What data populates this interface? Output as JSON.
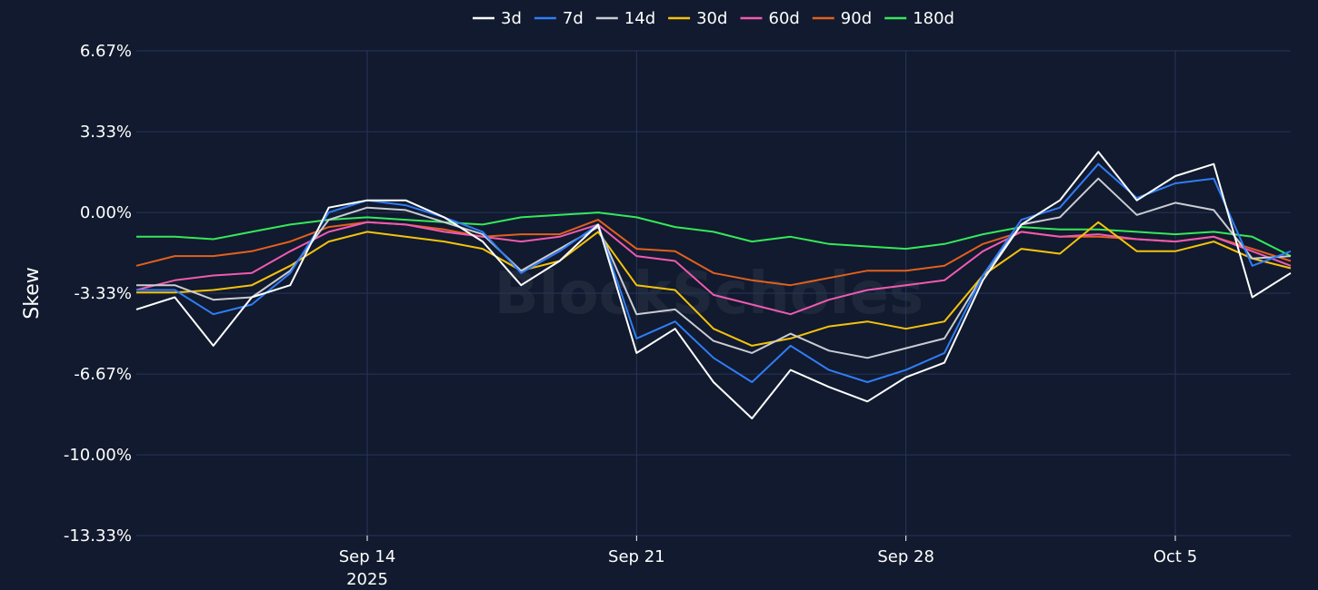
{
  "chart_data": {
    "type": "line",
    "ylabel": "Skew",
    "y_ticks": [
      "6.67%",
      "3.33%",
      "0.00%",
      "-3.33%",
      "-6.67%",
      "-10.00%",
      "-13.33%"
    ],
    "ylim": [
      -13.33,
      6.67
    ],
    "x_ticks": [
      {
        "date": "2025-09-14",
        "label": "Sep 14",
        "sublabel": "2025"
      },
      {
        "date": "2025-09-21",
        "label": "Sep 21",
        "sublabel": ""
      },
      {
        "date": "2025-09-28",
        "label": "Sep 28",
        "sublabel": ""
      },
      {
        "date": "2025-10-05",
        "label": "Oct 5",
        "sublabel": ""
      }
    ],
    "xlim": [
      "2025-09-08",
      "2025-10-08"
    ],
    "grid": true,
    "legend_position": "top-center",
    "watermark": "BlockScholes",
    "x": [
      "2025-09-08",
      "2025-09-09",
      "2025-09-10",
      "2025-09-11",
      "2025-09-12",
      "2025-09-13",
      "2025-09-14",
      "2025-09-15",
      "2025-09-16",
      "2025-09-17",
      "2025-09-18",
      "2025-09-19",
      "2025-09-20",
      "2025-09-21",
      "2025-09-22",
      "2025-09-23",
      "2025-09-24",
      "2025-09-25",
      "2025-09-26",
      "2025-09-27",
      "2025-09-28",
      "2025-09-29",
      "2025-09-30",
      "2025-10-01",
      "2025-10-02",
      "2025-10-03",
      "2025-10-04",
      "2025-10-05",
      "2025-10-06",
      "2025-10-07",
      "2025-10-08"
    ],
    "series": [
      {
        "name": "3d",
        "color": "#ffffff",
        "values": [
          -4.0,
          -3.5,
          -5.5,
          -3.5,
          -3.0,
          0.2,
          0.5,
          0.5,
          -0.2,
          -1.2,
          -3.0,
          -2.0,
          -0.5,
          -5.8,
          -4.8,
          -7.0,
          -8.5,
          -6.5,
          -7.2,
          -7.8,
          -6.8,
          -6.2,
          -2.8,
          -0.5,
          0.5,
          2.5,
          0.5,
          1.5,
          2.0,
          -3.5,
          -2.5
        ]
      },
      {
        "name": "7d",
        "color": "#2f7df6",
        "values": [
          -3.2,
          -3.2,
          -4.2,
          -3.8,
          -2.5,
          0.0,
          0.5,
          0.3,
          -0.2,
          -0.8,
          -2.5,
          -1.6,
          -0.5,
          -5.2,
          -4.5,
          -6.0,
          -7.0,
          -5.5,
          -6.5,
          -7.0,
          -6.5,
          -5.8,
          -2.6,
          -0.3,
          0.2,
          2.0,
          0.6,
          1.2,
          1.4,
          -2.2,
          -1.6
        ]
      },
      {
        "name": "14d",
        "color": "#c9ccd3",
        "values": [
          -3.0,
          -3.0,
          -3.6,
          -3.5,
          -2.4,
          -0.3,
          0.2,
          0.1,
          -0.4,
          -0.9,
          -2.4,
          -1.5,
          -0.6,
          -4.2,
          -4.0,
          -5.3,
          -5.8,
          -5.0,
          -5.7,
          -6.0,
          -5.6,
          -5.2,
          -2.6,
          -0.5,
          -0.2,
          1.4,
          -0.1,
          0.4,
          0.1,
          -1.9,
          -1.8
        ]
      },
      {
        "name": "30d",
        "color": "#f4c20d",
        "values": [
          -3.3,
          -3.3,
          -3.2,
          -3.0,
          -2.2,
          -1.2,
          -0.8,
          -1.0,
          -1.2,
          -1.5,
          -2.4,
          -2.0,
          -0.8,
          -3.0,
          -3.2,
          -4.8,
          -5.5,
          -5.2,
          -4.7,
          -4.5,
          -4.8,
          -4.5,
          -2.6,
          -1.5,
          -1.7,
          -0.4,
          -1.6,
          -1.6,
          -1.2,
          -1.9,
          -2.3
        ]
      },
      {
        "name": "60d",
        "color": "#f05ab0",
        "values": [
          -3.2,
          -2.8,
          -2.6,
          -2.5,
          -1.6,
          -0.8,
          -0.4,
          -0.5,
          -0.8,
          -1.0,
          -1.2,
          -1.0,
          -0.5,
          -1.8,
          -2.0,
          -3.4,
          -3.8,
          -4.2,
          -3.6,
          -3.2,
          -3.0,
          -2.8,
          -1.6,
          -0.8,
          -1.0,
          -0.9,
          -1.1,
          -1.2,
          -1.0,
          -1.6,
          -2.2
        ]
      },
      {
        "name": "90d",
        "color": "#e2601e",
        "values": [
          -2.2,
          -1.8,
          -1.8,
          -1.6,
          -1.2,
          -0.6,
          -0.4,
          -0.5,
          -0.7,
          -1.0,
          -0.9,
          -0.9,
          -0.3,
          -1.5,
          -1.6,
          -2.5,
          -2.8,
          -3.0,
          -2.7,
          -2.4,
          -2.4,
          -2.2,
          -1.3,
          -0.8,
          -1.0,
          -1.0,
          -1.1,
          -1.2,
          -1.0,
          -1.5,
          -2.0
        ]
      },
      {
        "name": "180d",
        "color": "#35e85a",
        "values": [
          -1.0,
          -1.0,
          -1.1,
          -0.8,
          -0.5,
          -0.3,
          -0.2,
          -0.3,
          -0.4,
          -0.5,
          -0.2,
          -0.1,
          0.0,
          -0.2,
          -0.6,
          -0.8,
          -1.2,
          -1.0,
          -1.3,
          -1.4,
          -1.5,
          -1.3,
          -0.9,
          -0.6,
          -0.7,
          -0.7,
          -0.8,
          -0.9,
          -0.8,
          -1.0,
          -1.8
        ]
      }
    ]
  }
}
